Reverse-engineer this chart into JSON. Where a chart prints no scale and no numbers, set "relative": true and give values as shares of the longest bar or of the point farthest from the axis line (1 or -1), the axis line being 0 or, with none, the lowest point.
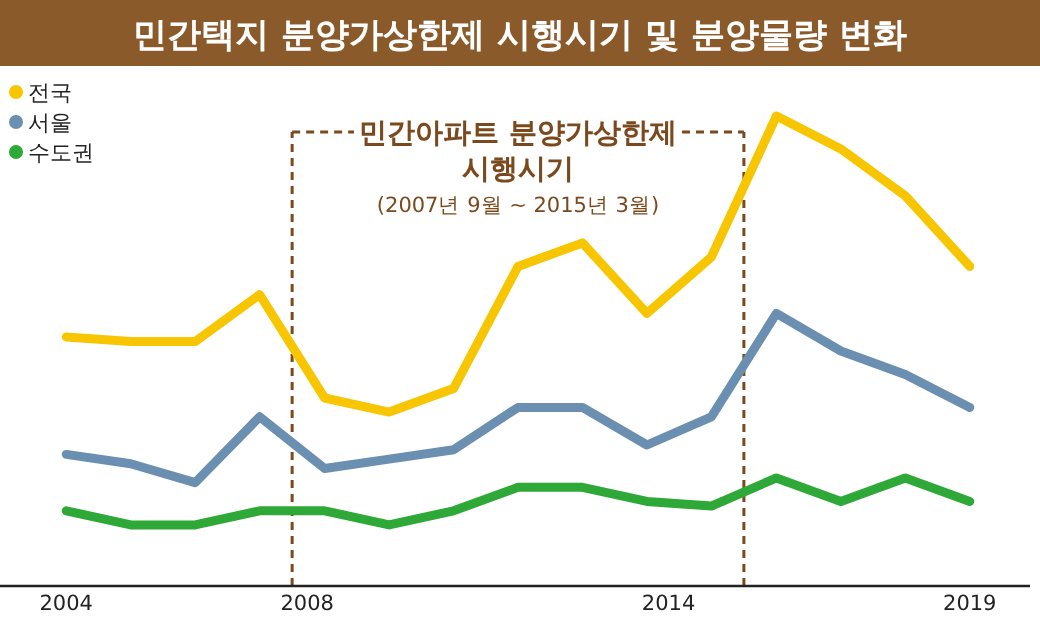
{
  "chart_data": {
    "type": "line",
    "title": "민간택지 분양가상한제 시행시기 및 분양물량 변화",
    "relative": true,
    "legend": "top left",
    "marker": "none",
    "line_style": "solid",
    "x": [
      2004,
      2005.07,
      2006.14,
      2007.21,
      2008.29,
      2009.36,
      2010.43,
      2011.5,
      2012.57,
      2013.64,
      2014.71,
      2015.79,
      2016.86,
      2017.93,
      2019
    ],
    "xlim": [
      2002.9,
      2020
    ],
    "xticks": [
      2004,
      2008,
      2014,
      2019
    ],
    "series": [
      {
        "name": "전국",
        "color": "#f7c600",
        "values": [
          0.53,
          0.52,
          0.52,
          0.62,
          0.4,
          0.37,
          0.42,
          0.68,
          0.73,
          0.58,
          0.7,
          1.0,
          0.93,
          0.83,
          0.68
        ]
      },
      {
        "name": "서울",
        "color": "#6a8fb0",
        "values": [
          0.28,
          0.26,
          0.22,
          0.36,
          0.25,
          0.27,
          0.29,
          0.38,
          0.38,
          0.3,
          0.36,
          0.58,
          0.5,
          0.45,
          0.38
        ]
      },
      {
        "name": "수도권",
        "color": "#2ea836",
        "values": [
          0.16,
          0.13,
          0.13,
          0.16,
          0.16,
          0.13,
          0.16,
          0.21,
          0.21,
          0.18,
          0.17,
          0.23,
          0.18,
          0.23,
          0.18
        ]
      }
    ],
    "ref_lines": [
      {
        "axis": "x",
        "value": 2007.75,
        "color": "#7a4a1e",
        "line_style": "dashed"
      },
      {
        "axis": "x",
        "value": 2015.25,
        "color": "#7a4a1e",
        "line_style": "dashed"
      }
    ],
    "annotations": [
      "민간아파트 분양가상한제 시행시기",
      "(2007년 9월 ~ 2015년 3월)"
    ]
  }
}
